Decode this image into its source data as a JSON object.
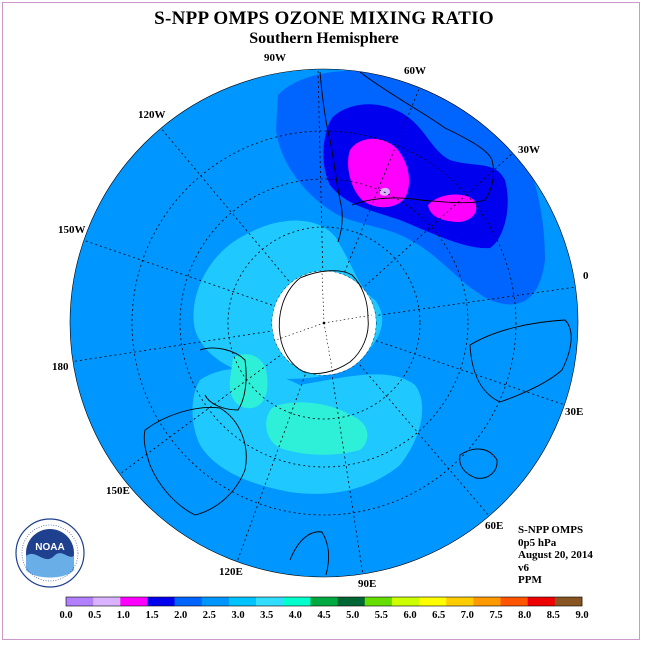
{
  "title": "S-NPP OMPS OZONE MIXING RATIO",
  "subtitle": "Southern Hemisphere",
  "longitude_labels": [
    "90W",
    "60W",
    "120W",
    "30W",
    "150W",
    "0",
    "180",
    "30E",
    "150E",
    "60E",
    "120E",
    "90E"
  ],
  "info": {
    "instrument": "S-NPP OMPS",
    "level": "0p5 hPa",
    "date": "August 20, 2014",
    "version": "v6",
    "units": "PPM"
  },
  "logo": {
    "text": "NOAA"
  },
  "legend": {
    "labels": [
      "0.0",
      "0.5",
      "1.0",
      "1.5",
      "2.0",
      "2.5",
      "3.0",
      "3.5",
      "4.0",
      "4.5",
      "5.0",
      "5.5",
      "6.0",
      "6.5",
      "7.0",
      "7.5",
      "8.0",
      "8.5",
      "9.0"
    ],
    "colors": [
      "#b27fff",
      "#d9b3ff",
      "#ff00ff",
      "#0000ee",
      "#0064ff",
      "#0096ff",
      "#00c3ff",
      "#33ddff",
      "#00ffcc",
      "#00a840",
      "#006633",
      "#66dd00",
      "#ccff00",
      "#ffff00",
      "#ffcc00",
      "#ff9900",
      "#ff5500",
      "#ee0000",
      "#885522"
    ]
  },
  "colors": {
    "background_field": "#0096ff",
    "no_data_pole": "#ffffff",
    "frame": "#cc99cc"
  }
}
